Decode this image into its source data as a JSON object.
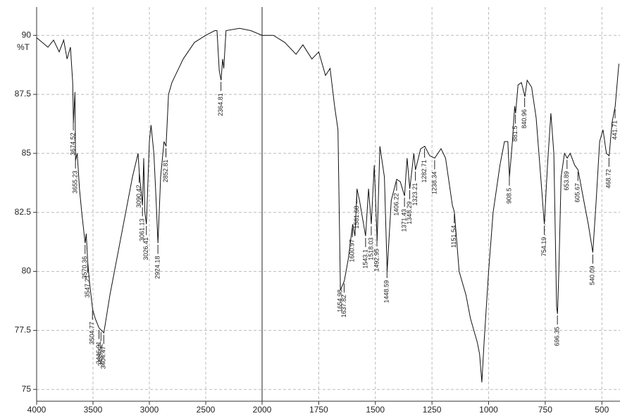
{
  "chart_data": {
    "type": "line",
    "ylabel": "%T",
    "color": "#111111",
    "grid": true,
    "xlim": [
      4000,
      420
    ],
    "x_break": 2000,
    "xticks": [
      4000,
      3500,
      3000,
      2500,
      2000,
      1750,
      1500,
      1250,
      1000,
      750,
      500
    ],
    "ylim": [
      74.5,
      91.2
    ],
    "yticks": [
      75,
      77.5,
      80,
      82.5,
      85,
      87.5,
      90
    ],
    "x": [
      4000,
      3950,
      3900,
      3850,
      3800,
      3760,
      3730,
      3700,
      3680,
      3674,
      3660,
      3655,
      3640,
      3620,
      3600,
      3570,
      3560,
      3547,
      3530,
      3504,
      3480,
      3446,
      3425,
      3404,
      3350,
      3250,
      3150,
      3100,
      3090,
      3075,
      3061,
      3050,
      3040,
      3026,
      3000,
      2985,
      2960,
      2940,
      2924,
      2900,
      2870,
      2852,
      2830,
      2800,
      2700,
      2600,
      2500,
      2420,
      2400,
      2380,
      2364,
      2350,
      2340,
      2320,
      2200,
      2100,
      2000,
      1950,
      1900,
      1850,
      1820,
      1780,
      1750,
      1720,
      1700,
      1680,
      1665,
      1654,
      1637,
      1620,
      1600,
      1590,
      1581,
      1570,
      1543,
      1530,
      1518,
      1505,
      1492,
      1480,
      1460,
      1448,
      1430,
      1406,
      1390,
      1371,
      1360,
      1348,
      1330,
      1323,
      1300,
      1282,
      1260,
      1238,
      1210,
      1190,
      1160,
      1151,
      1130,
      1100,
      1080,
      1050,
      1040,
      1030,
      1020,
      1000,
      980,
      950,
      930,
      915,
      908,
      895,
      885,
      881,
      870,
      855,
      840,
      830,
      810,
      790,
      770,
      754,
      740,
      725,
      712,
      700,
      696,
      690,
      680,
      665,
      653,
      640,
      620,
      605,
      580,
      560,
      540,
      525,
      510,
      495,
      480,
      468,
      455,
      441,
      425
    ],
    "values": [
      89.9,
      89.7,
      89.5,
      89.8,
      89.3,
      89.8,
      89.0,
      89.5,
      88.0,
      86.3,
      87.6,
      84.7,
      85.0,
      83.5,
      82.5,
      81.2,
      81.6,
      80.4,
      79.5,
      78.4,
      78.0,
      77.6,
      77.5,
      77.4,
      79.0,
      81.5,
      84.0,
      85.0,
      84.2,
      83.5,
      82.8,
      84.8,
      82.5,
      82.0,
      85.5,
      86.2,
      85.0,
      83.0,
      81.2,
      84.0,
      85.5,
      85.3,
      87.5,
      88.0,
      89.0,
      89.7,
      90.0,
      90.2,
      90.2,
      88.5,
      88.1,
      89.0,
      88.6,
      90.2,
      90.3,
      90.2,
      90.0,
      90.0,
      89.7,
      89.2,
      89.6,
      89.0,
      89.3,
      88.3,
      88.6,
      87.0,
      86.0,
      79.2,
      79.6,
      80.5,
      82.0,
      81.5,
      83.5,
      83.0,
      81.5,
      83.5,
      82.0,
      84.5,
      81.3,
      85.3,
      84.0,
      80.0,
      83.0,
      83.9,
      83.8,
      83.2,
      84.8,
      83.5,
      85.0,
      84.3,
      85.2,
      85.3,
      84.9,
      84.8,
      85.2,
      84.8,
      82.8,
      82.5,
      80.0,
      79.0,
      78.0,
      77.0,
      76.5,
      75.3,
      77.0,
      80.0,
      82.5,
      84.5,
      85.5,
      85.5,
      84.0,
      85.5,
      87.0,
      86.7,
      87.9,
      88.0,
      87.4,
      88.1,
      87.8,
      86.5,
      84.0,
      82.0,
      84.5,
      86.7,
      85.0,
      78.5,
      78.2,
      80.0,
      84.0,
      85.0,
      84.8,
      85.0,
      84.5,
      84.3,
      83.0,
      82.0,
      80.8,
      83.0,
      85.5,
      86.0,
      85.0,
      84.9,
      86.3,
      87.0,
      88.8
    ],
    "peak_labels": [
      3674.52,
      3655.23,
      3570.36,
      3547.21,
      3504.77,
      3446.91,
      3429.52,
      3404.47,
      3090.42,
      3061.13,
      3026.41,
      2924.18,
      2852.81,
      2364.81,
      1654.98,
      1637.82,
      1600.97,
      1581.68,
      1543.1,
      1518.03,
      1492.95,
      1448.59,
      1406.22,
      1371.43,
      1348.29,
      1323.21,
      1282.71,
      1238.34,
      1151.54,
      908.5,
      881.5,
      840.96,
      754.19,
      696.35,
      653.89,
      605.67,
      540.09,
      468.72,
      441.71
    ]
  }
}
